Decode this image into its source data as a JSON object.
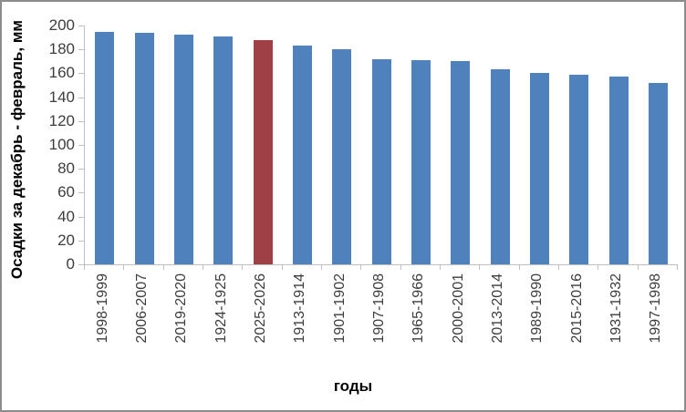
{
  "window": {
    "background": "#ffffff",
    "border_color": "#8c8c8c"
  },
  "chart_data": {
    "type": "bar",
    "title": "",
    "xlabel": "годы",
    "ylabel": "Осадки за декабрь - февраль, мм",
    "categories": [
      "1998-1999",
      "2006-2007",
      "2019-2020",
      "1924-1925",
      "2025-2026",
      "1913-1914",
      "1901-1902",
      "1907-1908",
      "1965-1966",
      "2000-2001",
      "2013-2014",
      "1989-1990",
      "2015-2016",
      "1931-1932",
      "1997-1998"
    ],
    "values": [
      195,
      194,
      192,
      191,
      188,
      183,
      180,
      172,
      171,
      170,
      163,
      160,
      159,
      157,
      152
    ],
    "highlight_index": 4,
    "highlight_category": "2025-2026",
    "bar_color": "#4f81bd",
    "highlight_color": "#9e4044",
    "ylim": [
      0,
      200
    ],
    "ytick_step": 20,
    "grid": false,
    "legend": "none",
    "axis_color": "#bfbfbf",
    "tick_label_color": "#3d3d3d"
  }
}
